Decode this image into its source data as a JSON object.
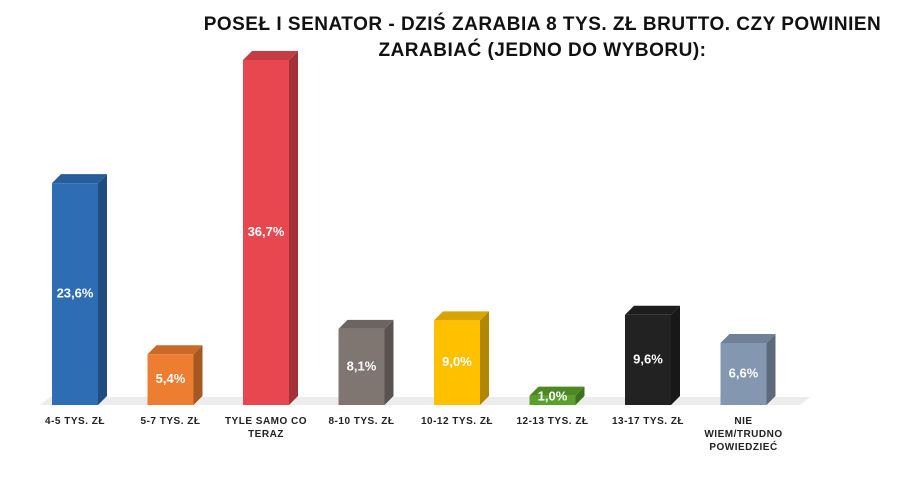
{
  "chart_data": {
    "type": "bar3d",
    "title": "POSEŁ I SENATOR - DZIŚ ZARABIA 8 TYS. ZŁ BRUTTO. CZY POWINIEN ZARABIAĆ (JEDNO DO WYBORU):",
    "categories": [
      "4-5 TYS. ZŁ",
      "5-7 TYS. ZŁ",
      "TYLE SAMO CO TERAZ",
      "8-10 TYS. ZŁ",
      "10-12 TYS. ZŁ",
      "12-13 TYS. ZŁ",
      "13-17 TYS. ZŁ",
      "NIE WIEM/TRUDNO POWIEDZIEĆ"
    ],
    "values": [
      23.6,
      5.4,
      36.7,
      8.1,
      9.0,
      1.0,
      9.6,
      6.6
    ],
    "value_labels": [
      "23,6%",
      "5,4%",
      "36,7%",
      "8,1%",
      "9,0%",
      "1,0%",
      "9,6%",
      "6,6%"
    ],
    "colors": [
      "#2e6db4",
      "#ed7d31",
      "#e8474f",
      "#7f7672",
      "#ffc000",
      "#5aa02c",
      "#222222",
      "#8497b0"
    ]
  }
}
